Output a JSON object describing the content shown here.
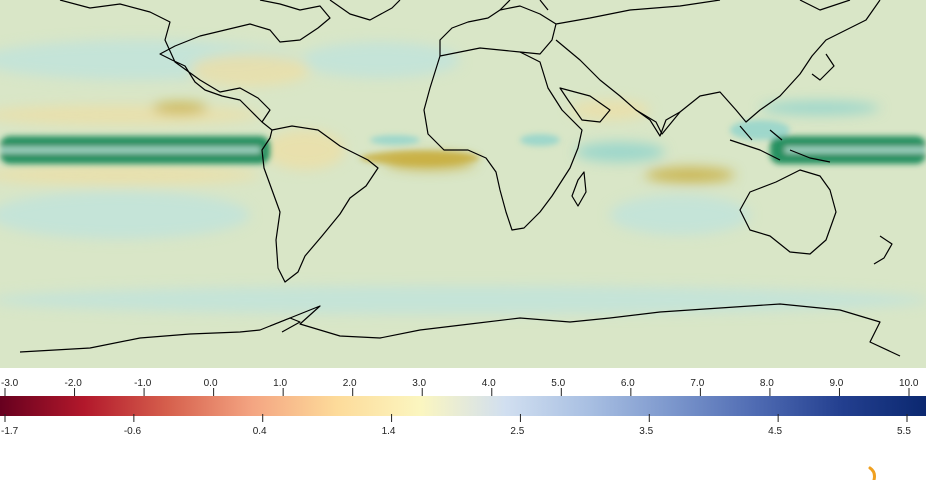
{
  "map": {
    "field_colors": {
      "background": "#d9e6c7",
      "strong_positive": "#1a8c5c",
      "positive": "#8fd3cc",
      "weak_positive": "#bfe4dc",
      "negative": "#c8ad3c",
      "weak_negative": "#ecdfa6"
    },
    "coastline_color": "#000000"
  },
  "colorbar": {
    "top_ticks": [
      "-3.0",
      "-2.0",
      "-1.0",
      "0.0",
      "1.0",
      "2.0",
      "3.0",
      "4.0",
      "5.0",
      "6.0",
      "7.0",
      "8.0",
      "9.0",
      "10.0"
    ],
    "bottom_ticks": [
      "-1.7",
      "-0.6",
      "0.4",
      "1.4",
      "2.5",
      "3.5",
      "4.5",
      "5.5"
    ],
    "colormap": [
      "#67001f",
      "#b2182b",
      "#d6604d",
      "#f4a582",
      "#fddb9a",
      "#fbf6c0",
      "#d1dff0",
      "#a8bfe2",
      "#7b96cc",
      "#4e6ab2",
      "#233f8f",
      "#0b2870"
    ]
  },
  "spinner": {
    "color": "#f0a020",
    "icon": "loading-spinner-icon"
  }
}
